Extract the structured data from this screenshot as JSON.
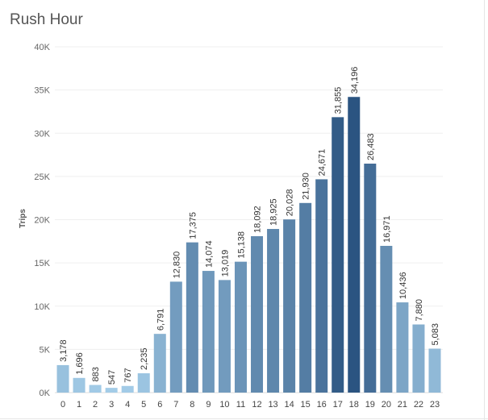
{
  "title": "Rush Hour",
  "chart_data": {
    "type": "bar",
    "title": "Rush Hour",
    "xlabel": "",
    "ylabel": "Trips",
    "ylim": [
      0,
      40000
    ],
    "yticks": [
      0,
      5000,
      10000,
      15000,
      20000,
      25000,
      30000,
      35000,
      40000
    ],
    "ytick_labels": [
      "0K",
      "5K",
      "10K",
      "15K",
      "20K",
      "25K",
      "30K",
      "35K",
      "40K"
    ],
    "categories": [
      "0",
      "1",
      "2",
      "3",
      "4",
      "5",
      "6",
      "7",
      "8",
      "9",
      "10",
      "11",
      "12",
      "13",
      "14",
      "15",
      "16",
      "17",
      "18",
      "19",
      "20",
      "21",
      "22",
      "23"
    ],
    "values": [
      3178,
      1696,
      883,
      547,
      767,
      2235,
      6791,
      12830,
      17375,
      14074,
      13019,
      15138,
      18092,
      18925,
      20028,
      21930,
      24671,
      31855,
      34196,
      26483,
      16971,
      10436,
      7880,
      5083
    ],
    "value_labels": [
      "3,178",
      "1,696",
      "883",
      "547",
      "767",
      "2,235",
      "6,791",
      "12,830",
      "17,375",
      "14,074",
      "13,019",
      "15,138",
      "18,092",
      "18,925",
      "20,028",
      "21,930",
      "24,671",
      "31,855",
      "34,196",
      "26,483",
      "16,971",
      "10,436",
      "7,880",
      "5,083"
    ],
    "color_scale": {
      "low": "#a6cfea",
      "high": "#2b5481"
    },
    "grid": true,
    "legend": "none"
  }
}
